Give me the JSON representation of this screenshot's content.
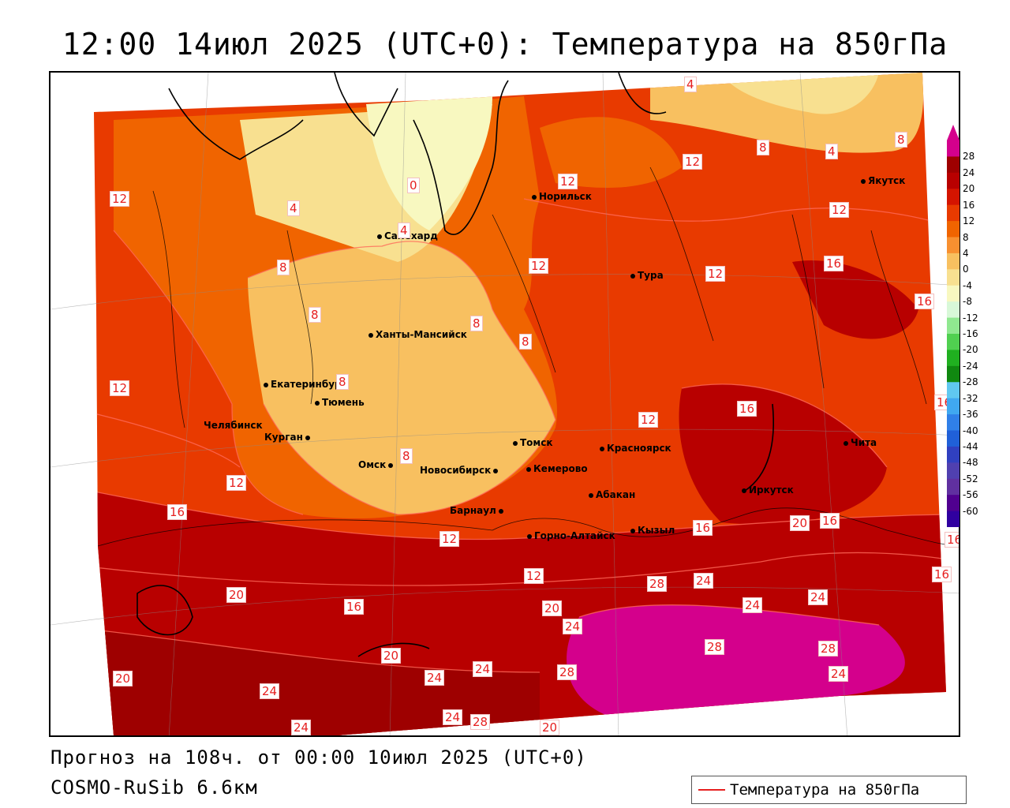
{
  "title": "12:00 14июл 2025 (UTC+0): Температура на 850гПа",
  "footer": {
    "forecast": "Прогноз на 108ч. от 00:00 10июл 2025 (UTC+0)",
    "model": "COSMO-RuSib 6.6км"
  },
  "legend": {
    "label": "Температура на 850гПа",
    "line_color": "#e62020"
  },
  "colorbar": {
    "ticks": [
      "28",
      "24",
      "20",
      "16",
      "12",
      "8",
      "4",
      "0",
      "-4",
      "-8",
      "-12",
      "-16",
      "-20",
      "-24",
      "-28",
      "-32",
      "-36",
      "-40",
      "-44",
      "-48",
      "-52",
      "-56",
      "-60"
    ],
    "colors": [
      "#d4008c",
      "#9e0000",
      "#b80000",
      "#d41400",
      "#e83a00",
      "#f06400",
      "#f89030",
      "#f8c060",
      "#f8e090",
      "#f8f8c0",
      "#d8f8d8",
      "#90e890",
      "#50d050",
      "#20b020",
      "#108810",
      "#60c8f0",
      "#40a8f0",
      "#3080e8",
      "#2060d8",
      "#3040c0",
      "#5040b0",
      "#6030a0",
      "#500090",
      "#3000a0"
    ]
  },
  "cities": [
    {
      "name": "Норильск",
      "id": "norilsk"
    },
    {
      "name": "Якутск",
      "id": "yakutsk"
    },
    {
      "name": "Салехард",
      "id": "salekhard"
    },
    {
      "name": "Тура",
      "id": "tura"
    },
    {
      "name": "Ханты-Мансийск",
      "id": "khanty-mansiysk"
    },
    {
      "name": "Екатеринбург",
      "id": "yekaterinburg"
    },
    {
      "name": "Тюмень",
      "id": "tyumen"
    },
    {
      "name": "Челябинск",
      "id": "chelyabinsk"
    },
    {
      "name": "Курган",
      "id": "kurgan"
    },
    {
      "name": "Омск",
      "id": "omsk"
    },
    {
      "name": "Новосибирск",
      "id": "novosibirsk"
    },
    {
      "name": "Томск",
      "id": "tomsk"
    },
    {
      "name": "Кемерово",
      "id": "kemerovo"
    },
    {
      "name": "Красноярск",
      "id": "krasnoyarsk"
    },
    {
      "name": "Абакан",
      "id": "abakan"
    },
    {
      "name": "Барнаул",
      "id": "barnaul"
    },
    {
      "name": "Горно-Алтайск",
      "id": "gorno-altaysk"
    },
    {
      "name": "Кызыл",
      "id": "kyzyl"
    },
    {
      "name": "Иркутск",
      "id": "irkutsk"
    },
    {
      "name": "Чита",
      "id": "chita"
    }
  ],
  "contour_labels": [
    "4",
    "12",
    "8",
    "4",
    "8",
    "12",
    "0",
    "4",
    "12",
    "4",
    "12",
    "12",
    "8",
    "16",
    "12",
    "16",
    "8",
    "8",
    "8",
    "8",
    "12",
    "12",
    "8",
    "16",
    "16",
    "12",
    "16",
    "12",
    "20",
    "16",
    "16",
    "16",
    "12",
    "16",
    "20",
    "16",
    "28",
    "24",
    "20",
    "24",
    "24",
    "20",
    "24",
    "20",
    "24",
    "28",
    "28",
    "24",
    "24",
    "24",
    "28",
    "24",
    "24",
    "28",
    "20"
  ]
}
